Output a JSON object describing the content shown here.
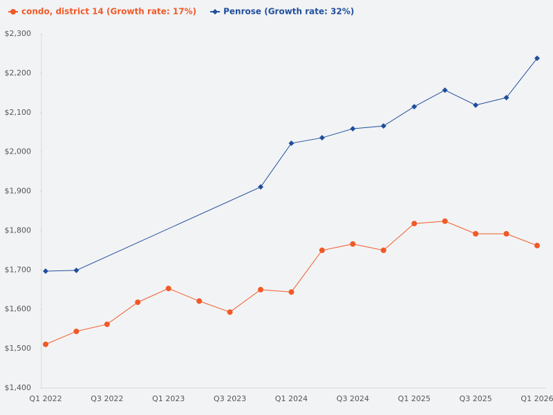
{
  "chart_data": {
    "type": "line",
    "categories": [
      "Q1 2022",
      null,
      "Q3 2022",
      null,
      "Q1 2023",
      null,
      "Q3 2023",
      null,
      "Q1 2024",
      null,
      "Q3 2024",
      null,
      "Q1 2025",
      null,
      "Q3 2025",
      null,
      "Q1 2026"
    ],
    "series": [
      {
        "name": "condo, district 14 (Growth rate: 17%)",
        "color": "#f05a28",
        "marker": "circle",
        "values": [
          1511,
          1544,
          1562,
          1618,
          1653,
          1621,
          1593,
          1650,
          1644,
          1750,
          1766,
          1750,
          1818,
          1824,
          1792,
          1792,
          1762
        ]
      },
      {
        "name": "Penrose (Growth rate: 32%)",
        "color": "#1f4e9c",
        "marker": "diamond",
        "values": [
          1697,
          1699,
          null,
          null,
          null,
          null,
          null,
          1911,
          2022,
          2036,
          2059,
          2066,
          2115,
          2157,
          2119,
          2138,
          2238
        ]
      }
    ],
    "span_gaps": true,
    "ylim": [
      1400,
      2300
    ],
    "yticks": [
      {
        "value": 1400,
        "label": "$1,400"
      },
      {
        "value": 1500,
        "label": "$1,500"
      },
      {
        "value": 1600,
        "label": "$1,600"
      },
      {
        "value": 1700,
        "label": "$1,700"
      },
      {
        "value": 1800,
        "label": "$1,800"
      },
      {
        "value": 1900,
        "label": "$1,900"
      },
      {
        "value": 2000,
        "label": "$2,000"
      },
      {
        "value": 2100,
        "label": "$2,100"
      },
      {
        "value": 2200,
        "label": "$2,200"
      },
      {
        "value": 2300,
        "label": "$2,300"
      }
    ],
    "grid": false,
    "legend": "top-left"
  }
}
